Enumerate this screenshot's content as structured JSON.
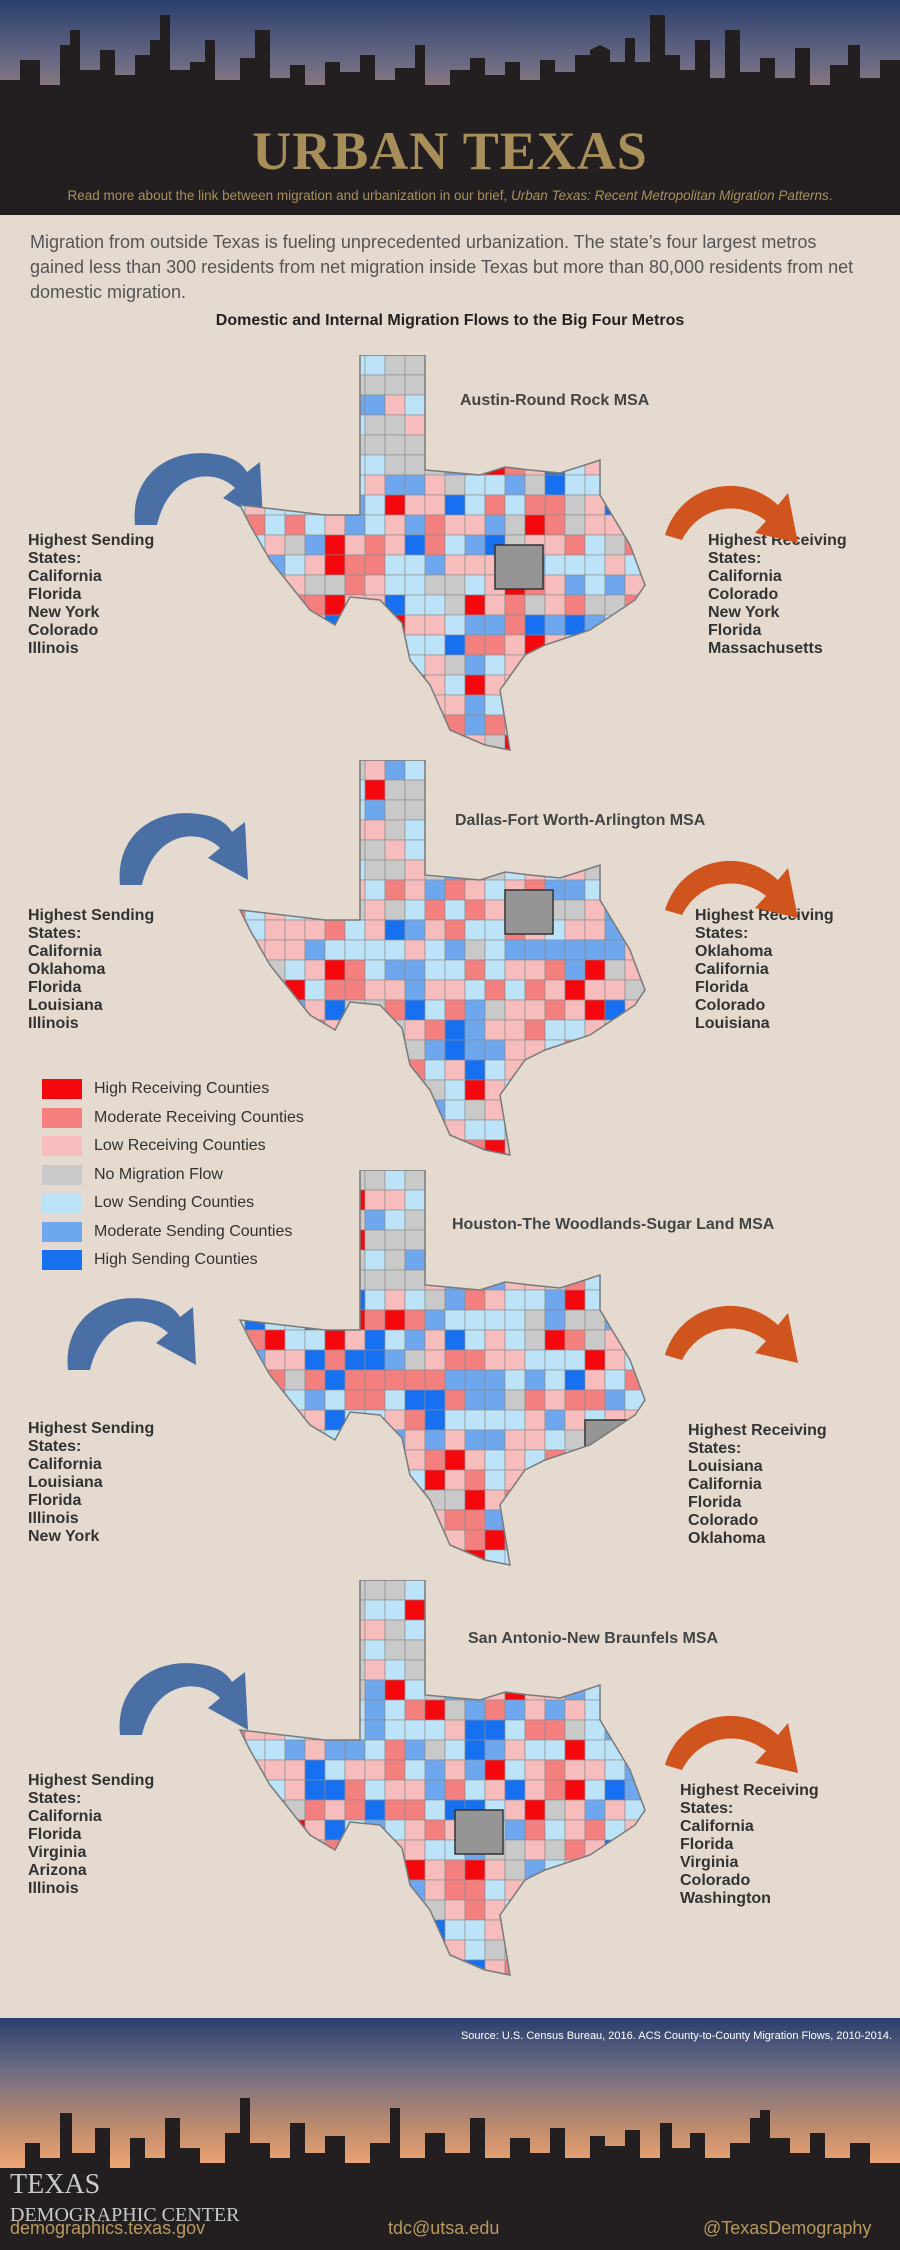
{
  "header": {
    "title": "URBAN TEXAS",
    "readmore_prefix": "Read more about the link between migration and urbanization in our brief, ",
    "readmore_italic": "Urban Texas: Recent Metropolitan Migration Patterns",
    "readmore_suffix": "."
  },
  "intro": "Migration from outside Texas is fueling unprecedented urbanization. The state’s four largest metros gained less than 300 residents from net migration inside Texas but more than 80,000 residents from net domestic migration.",
  "chart_title": "Domestic and Internal Migration Flows to the Big Four Metros",
  "colors": {
    "high_receiving": "#f4070d",
    "moderate_receiving": "#f3807f",
    "low_receiving": "#f7bcbc",
    "no_flow": "#c9c9c9",
    "low_sending": "#bde3f8",
    "moderate_sending": "#6fa7ee",
    "high_sending": "#1770f0",
    "metro": "#959595",
    "arrow_blue": "#4a6fa5",
    "arrow_orange": "#d0541e"
  },
  "maps": [
    {
      "title": "Austin-Round Rock MSA",
      "sending_heading": "Highest Sending States:",
      "sending": [
        "California",
        "Florida",
        "New York",
        "Colorado",
        "Illinois"
      ],
      "receiving_heading": "Highest Receiving States:",
      "receiving": [
        "California",
        "Colorado",
        "New York",
        "Florida",
        "Massachusetts"
      ]
    },
    {
      "title": "Dallas-Fort Worth-Arlington  MSA",
      "sending_heading": "Highest Sending States:",
      "sending": [
        "California",
        "Oklahoma",
        "Florida",
        "Louisiana",
        "Illinois"
      ],
      "receiving_heading": "Highest Receiving States:",
      "receiving": [
        "Oklahoma",
        "California",
        "Florida",
        "Colorado",
        "Louisiana"
      ]
    },
    {
      "title": "Houston-The Woodlands-Sugar Land MSA",
      "sending_heading": "Highest Sending States:",
      "sending": [
        "California",
        "Louisiana",
        "Florida",
        "Illinois",
        "New York"
      ],
      "receiving_heading": "Highest Receiving States:",
      "receiving": [
        "Louisiana",
        "California",
        "Florida",
        "Colorado",
        "Oklahoma"
      ]
    },
    {
      "title": "San Antonio-New Braunfels MSA",
      "sending_heading": "Highest Sending States:",
      "sending": [
        "California",
        "Florida",
        "Virginia",
        "Arizona",
        "Illinois"
      ],
      "receiving_heading": "Highest Receiving States:",
      "receiving": [
        "California",
        "Florida",
        "Virginia",
        "Colorado",
        "Washington"
      ]
    }
  ],
  "legend": [
    {
      "label": "High Receiving Counties",
      "color": "#f4070d"
    },
    {
      "label": "Moderate Receiving Counties",
      "color": "#f3807f"
    },
    {
      "label": "Low Receiving Counties",
      "color": "#f7bcbc"
    },
    {
      "label": "No Migration Flow",
      "color": "#c9c9c9"
    },
    {
      "label": "Low Sending Counties",
      "color": "#bde3f8"
    },
    {
      "label": "Moderate Sending Counties",
      "color": "#6fa7ee"
    },
    {
      "label": "High Sending Counties",
      "color": "#1770f0"
    }
  ],
  "footer": {
    "source": "Source: U.S. Census Bureau, 2016. ACS County-to-County Migration Flows, 2010-2014.",
    "logo_line1": "TEXAS",
    "logo_line2": "DEMOGRAPHIC CENTER",
    "website": "demographics.texas.gov",
    "email": "tdc@utsa.edu",
    "twitter": "@TexasDemography"
  }
}
